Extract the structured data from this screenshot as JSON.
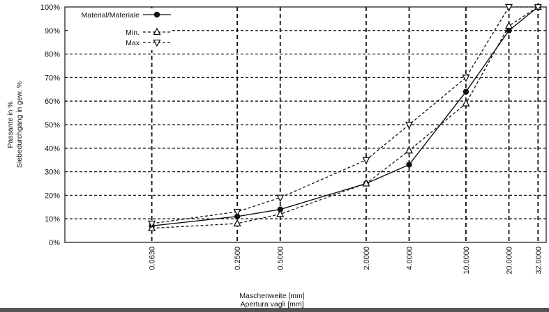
{
  "chart_data": {
    "type": "line",
    "xlabel": [
      "Maschenweite [mm]",
      "Apertura vagli [mm]"
    ],
    "ylabel": [
      "Passante in %",
      "Siebedurchgang in gew. %"
    ],
    "x_scale": "log",
    "categories": [
      "0.0630",
      "0.2500",
      "0.5000",
      "2.0000",
      "4.0000",
      "10.0000",
      "20.0000",
      "32.0000"
    ],
    "x": [
      0.063,
      0.25,
      0.5,
      2.0,
      4.0,
      10.0,
      20.0,
      32.0
    ],
    "y_ticks": [
      "0%",
      "10%",
      "20%",
      "30%",
      "40%",
      "50%",
      "60%",
      "70%",
      "80%",
      "90%",
      "100%"
    ],
    "ylim": [
      0,
      100
    ],
    "grid": true,
    "legend_position": "top-left",
    "series": [
      {
        "name": "Material/Materiale",
        "marker": "circle",
        "line": "solid",
        "values": [
          7,
          11,
          14,
          25,
          33,
          64,
          90,
          100
        ]
      },
      {
        "name": "Min.",
        "marker": "triangle-up",
        "line": "dashed",
        "values": [
          6,
          8,
          12,
          25,
          39,
          59,
          92,
          100
        ]
      },
      {
        "name": "Max",
        "marker": "triangle-down",
        "line": "dashed",
        "values": [
          8,
          13,
          19,
          35,
          50,
          70,
          100,
          100
        ]
      }
    ]
  }
}
